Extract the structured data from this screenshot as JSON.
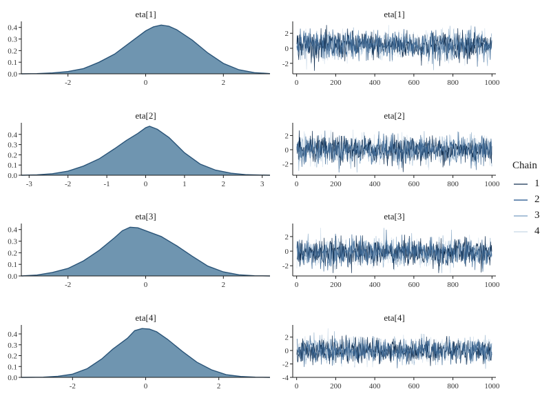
{
  "legend": {
    "title": "Chain",
    "entries": [
      {
        "label": "1",
        "color": "#6b7d92"
      },
      {
        "label": "2",
        "color": "#6e8fb4"
      },
      {
        "label": "3",
        "color": "#a9c1d8"
      },
      {
        "label": "4",
        "color": "#dbe6ef"
      }
    ]
  },
  "colors": {
    "density_fill": "#6f95b0",
    "density_line": "#2a5478",
    "chain_1": "#0f2d4f",
    "chain_2": "#3f6a96",
    "chain_3": "#9bb7d0",
    "chain_4": "#d3e0ec"
  },
  "chart_data": [
    {
      "type": "area",
      "title": "eta[1]",
      "xlim": [
        -3.2,
        3.2
      ],
      "ylim": [
        0,
        0.44
      ],
      "xticks": [
        -2,
        0,
        2
      ],
      "xticklabels": [
        "-2",
        "0",
        "2"
      ],
      "yticks": [
        0,
        0.1,
        0.2,
        0.3,
        0.4
      ],
      "yticklabels": [
        "0.0",
        "0.1",
        "0.2",
        "0.3",
        "0.4"
      ],
      "x": [
        -3.2,
        -2.8,
        -2.4,
        -2.0,
        -1.6,
        -1.2,
        -0.8,
        -0.4,
        0.0,
        0.2,
        0.4,
        0.6,
        0.8,
        1.2,
        1.6,
        2.0,
        2.4,
        2.8,
        3.2
      ],
      "y": [
        0.0,
        0.002,
        0.008,
        0.02,
        0.045,
        0.1,
        0.17,
        0.27,
        0.37,
        0.405,
        0.42,
        0.41,
        0.38,
        0.29,
        0.18,
        0.09,
        0.035,
        0.01,
        0.002
      ]
    },
    {
      "type": "line",
      "title": "eta[1]",
      "xlim": [
        -20,
        1020
      ],
      "ylim": [
        -3.4,
        3.4
      ],
      "xticks": [
        0,
        200,
        400,
        600,
        800,
        1000
      ],
      "xticklabels": [
        "0",
        "200",
        "400",
        "600",
        "800",
        "1000"
      ],
      "yticks": [
        -2,
        0,
        2
      ],
      "yticklabels": [
        "-2",
        "0",
        "2"
      ],
      "iterations": 1000,
      "chains": 4,
      "approx_mean": 0.4,
      "approx_sd": 0.95
    },
    {
      "type": "area",
      "title": "eta[2]",
      "xlim": [
        -3.2,
        3.2
      ],
      "ylim": [
        0,
        0.5
      ],
      "xticks": [
        -3,
        -2,
        -1,
        0,
        1,
        2,
        3
      ],
      "xticklabels": [
        "-3",
        "-2",
        "-1",
        "0",
        "1",
        "2",
        "3"
      ],
      "yticks": [
        0,
        0.1,
        0.2,
        0.3,
        0.4
      ],
      "yticklabels": [
        "0.0",
        "0.1",
        "0.2",
        "0.3",
        "0.4"
      ],
      "x": [
        -3.2,
        -2.8,
        -2.4,
        -2.0,
        -1.6,
        -1.2,
        -0.8,
        -0.5,
        -0.2,
        0.0,
        0.1,
        0.3,
        0.6,
        1.0,
        1.4,
        1.8,
        2.2,
        2.6,
        3.2
      ],
      "y": [
        0.0,
        0.004,
        0.015,
        0.04,
        0.09,
        0.16,
        0.26,
        0.34,
        0.41,
        0.465,
        0.48,
        0.45,
        0.37,
        0.22,
        0.11,
        0.05,
        0.02,
        0.005,
        0.0
      ]
    },
    {
      "type": "line",
      "title": "eta[2]",
      "xlim": [
        -20,
        1020
      ],
      "ylim": [
        -3.6,
        3.6
      ],
      "xticks": [
        0,
        200,
        400,
        600,
        800,
        1000
      ],
      "xticklabels": [
        "0",
        "200",
        "400",
        "600",
        "800",
        "1000"
      ],
      "yticks": [
        -2,
        0,
        2
      ],
      "yticklabels": [
        "-2",
        "0",
        "2"
      ],
      "iterations": 1000,
      "chains": 4,
      "approx_mean": 0.0,
      "approx_sd": 0.95
    },
    {
      "type": "area",
      "title": "eta[3]",
      "xlim": [
        -3.2,
        3.2
      ],
      "ylim": [
        0,
        0.44
      ],
      "xticks": [
        -2,
        0,
        2
      ],
      "xticklabels": [
        "-2",
        "0",
        "2"
      ],
      "yticks": [
        0,
        0.1,
        0.2,
        0.3,
        0.4
      ],
      "yticklabels": [
        "0.0",
        "0.1",
        "0.2",
        "0.3",
        "0.4"
      ],
      "x": [
        -3.2,
        -2.8,
        -2.4,
        -2.0,
        -1.6,
        -1.2,
        -0.8,
        -0.6,
        -0.4,
        -0.2,
        0.0,
        0.4,
        0.8,
        1.2,
        1.6,
        2.0,
        2.4,
        2.8,
        3.2
      ],
      "y": [
        0.0,
        0.008,
        0.03,
        0.065,
        0.13,
        0.22,
        0.33,
        0.39,
        0.42,
        0.415,
        0.39,
        0.34,
        0.26,
        0.17,
        0.085,
        0.035,
        0.01,
        0.002,
        0.0
      ]
    },
    {
      "type": "line",
      "title": "eta[3]",
      "xlim": [
        -20,
        1020
      ],
      "ylim": [
        -3.4,
        3.6
      ],
      "xticks": [
        0,
        200,
        400,
        600,
        800,
        1000
      ],
      "xticklabels": [
        "0",
        "200",
        "400",
        "600",
        "800",
        "1000"
      ],
      "yticks": [
        -2,
        0,
        2
      ],
      "yticklabels": [
        "-2",
        "0",
        "2"
      ],
      "iterations": 1000,
      "chains": 4,
      "approx_mean": -0.2,
      "approx_sd": 0.95
    },
    {
      "type": "area",
      "title": "eta[4]",
      "xlim": [
        -3.4,
        3.4
      ],
      "ylim": [
        0,
        0.47
      ],
      "xticks": [
        -2,
        0,
        2
      ],
      "xticklabels": [
        "-2",
        "0",
        "2"
      ],
      "yticks": [
        0,
        0.1,
        0.2,
        0.3,
        0.4
      ],
      "yticklabels": [
        "0.0",
        "0.1",
        "0.2",
        "0.3",
        "0.4"
      ],
      "x": [
        -3.4,
        -2.8,
        -2.4,
        -2.0,
        -1.6,
        -1.2,
        -0.9,
        -0.7,
        -0.5,
        -0.3,
        -0.1,
        0.1,
        0.3,
        0.6,
        1.0,
        1.4,
        1.8,
        2.2,
        2.6,
        3.0,
        3.4
      ],
      "y": [
        0.0,
        0.002,
        0.01,
        0.03,
        0.08,
        0.17,
        0.26,
        0.31,
        0.36,
        0.43,
        0.45,
        0.445,
        0.42,
        0.35,
        0.24,
        0.14,
        0.07,
        0.025,
        0.008,
        0.002,
        0.0
      ]
    },
    {
      "type": "line",
      "title": "eta[4]",
      "xlim": [
        -20,
        1020
      ],
      "ylim": [
        -4,
        3.6
      ],
      "xticks": [
        0,
        200,
        400,
        600,
        800,
        1000
      ],
      "xticklabels": [
        "0",
        "200",
        "400",
        "600",
        "800",
        "1000"
      ],
      "yticks": [
        -4,
        -2,
        0,
        2
      ],
      "yticklabels": [
        "-4",
        "-2",
        "0",
        "2"
      ],
      "iterations": 1000,
      "chains": 4,
      "approx_mean": 0.0,
      "approx_sd": 0.9
    }
  ]
}
